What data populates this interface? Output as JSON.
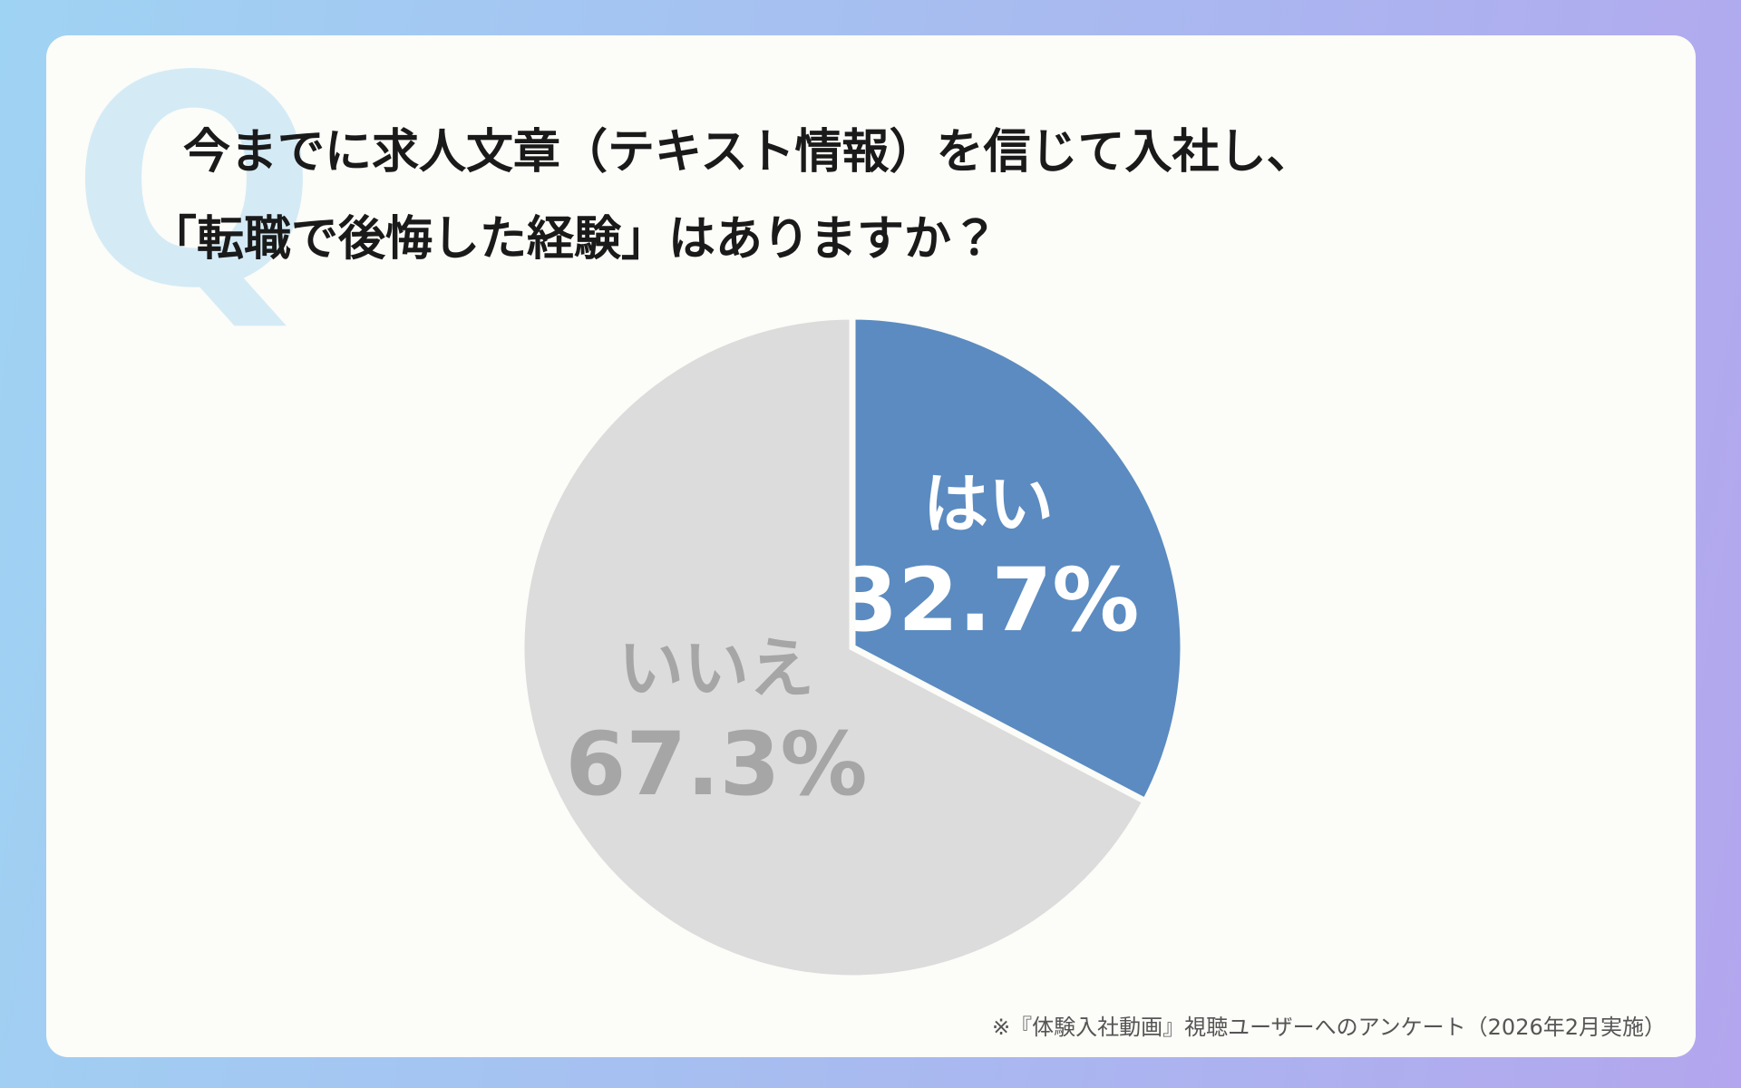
{
  "chart_data": {
    "type": "pie",
    "title_mark": "Q",
    "title_lines": [
      "今までに求人文章（テキスト情報）を信じて入社し、",
      "「転職で後悔した経験」はありますか？"
    ],
    "categories": [
      "はい",
      "いいえ"
    ],
    "values": [
      32.7,
      67.3
    ],
    "value_labels": [
      "32.7%",
      "67.3%"
    ],
    "colors": [
      "#5b8bc0",
      "#dcdcdc"
    ],
    "label_colors": [
      "#ffffff",
      "#a6a6a6"
    ],
    "note": "※『体験入社動画』視聴ユーザーへのアンケート（2026年2月実施）"
  }
}
